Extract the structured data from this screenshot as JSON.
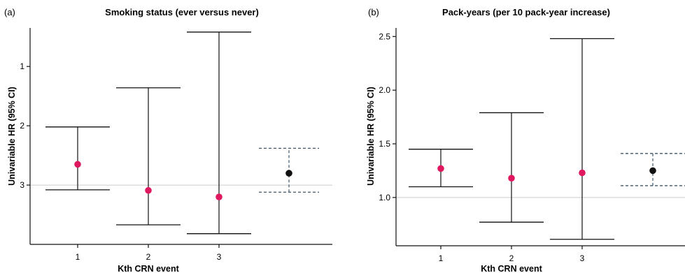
{
  "chart_data": [
    {
      "type": "errorbar",
      "panel_label": "(a)",
      "title": "Smoking status (ever versus never)",
      "xlabel": "Kth CRN event",
      "ylabel": "Univariable HR (95% CI)",
      "y_reversed": true,
      "ylim": [
        0.35,
        4.0
      ],
      "yticks": [
        1,
        2,
        3
      ],
      "reference_line": 3,
      "categories": [
        "1",
        "2",
        "3",
        ""
      ],
      "points": [
        {
          "x": "1",
          "estimate": 2.65,
          "lower": 2.02,
          "upper": 3.08,
          "color": "#e0185f",
          "style": "solid"
        },
        {
          "x": "2",
          "estimate": 3.09,
          "lower": 1.36,
          "upper": 3.67,
          "color": "#e0185f",
          "style": "solid"
        },
        {
          "x": "3",
          "estimate": 3.2,
          "lower": 0.42,
          "upper": 3.82,
          "color": "#e0185f",
          "style": "solid"
        },
        {
          "x": "",
          "estimate": 2.8,
          "lower": 2.38,
          "upper": 3.12,
          "color": "#111111",
          "style": "dashed"
        }
      ]
    },
    {
      "type": "errorbar",
      "panel_label": "(b)",
      "title": "Pack-years (per 10 pack-year increase)",
      "xlabel": "Kth CRN event",
      "ylabel": "Univariable HR (95% CI)",
      "y_reversed": false,
      "ylim": [
        0.55,
        2.58
      ],
      "yticks": [
        1.0,
        1.5,
        2.0,
        2.5
      ],
      "ytick_labels": [
        "1.0",
        "1.5",
        "2.0",
        "2.5"
      ],
      "reference_line": 1.0,
      "categories": [
        "1",
        "2",
        "3",
        ""
      ],
      "points": [
        {
          "x": "1",
          "estimate": 1.27,
          "lower": 1.1,
          "upper": 1.45,
          "color": "#e0185f",
          "style": "solid"
        },
        {
          "x": "2",
          "estimate": 1.18,
          "lower": 0.77,
          "upper": 1.79,
          "color": "#e0185f",
          "style": "solid"
        },
        {
          "x": "3",
          "estimate": 1.23,
          "lower": 0.61,
          "upper": 2.48,
          "color": "#e0185f",
          "style": "solid"
        },
        {
          "x": "",
          "estimate": 1.25,
          "lower": 1.11,
          "upper": 1.41,
          "color": "#111111",
          "style": "dashed"
        }
      ]
    }
  ]
}
